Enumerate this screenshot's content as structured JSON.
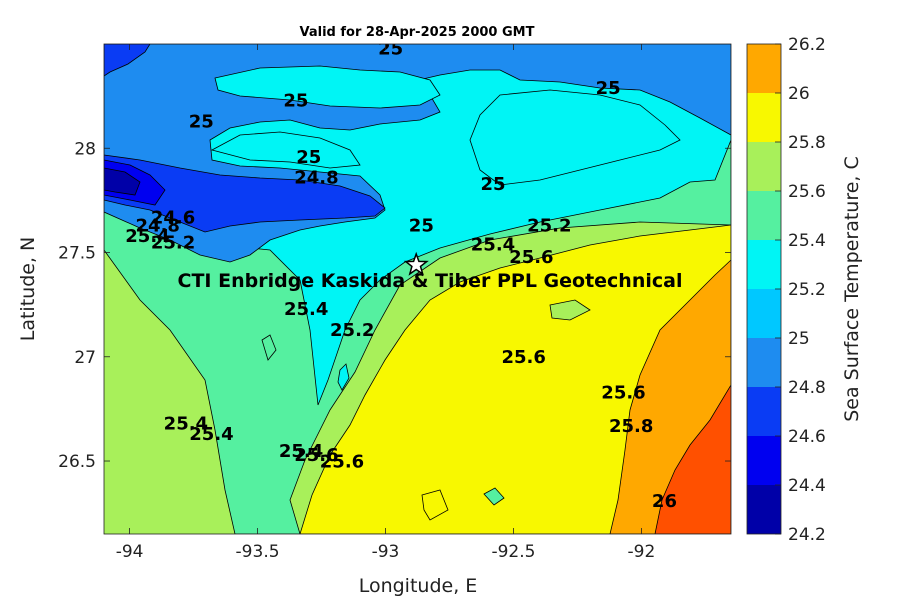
{
  "chart_data": {
    "type": "contour",
    "title": "Valid for 28-Apr-2025 2000 GMT",
    "xlabel": "Longitude, E",
    "ylabel": "Latitude, N",
    "xlim": [
      -94.1,
      -91.65
    ],
    "ylim": [
      26.15,
      28.5
    ],
    "xticks": [
      "-94",
      "-93.5",
      "-93",
      "-92.5",
      "-92"
    ],
    "yticks": [
      "26.5",
      "27",
      "27.5",
      "28"
    ],
    "colorbar": {
      "label": "Sea Surface Temperature, C",
      "ticks": [
        "24.2",
        "24.4",
        "24.6",
        "24.8",
        "25",
        "25.2",
        "25.4",
        "25.6",
        "25.8",
        "26",
        "26.2"
      ],
      "levels": [
        24.2,
        24.4,
        24.6,
        24.8,
        25.0,
        25.2,
        25.4,
        25.6,
        25.8,
        26.0,
        26.2
      ],
      "colors": [
        "#0000a8",
        "#0000f0",
        "#0a3cf4",
        "#1e8cf0",
        "#00c8ff",
        "#00f5f5",
        "#55f0a0",
        "#a8f05a",
        "#f8f800",
        "#ffa800",
        "#ff5000"
      ]
    },
    "station": {
      "label": "CTI Enbridge  Kaskida & Tiber PPL Geotechnical",
      "lon": -92.88,
      "lat": 27.44,
      "marker": "star"
    },
    "contour_labels": [
      {
        "text": "25",
        "lon": -92.98,
        "lat": 28.45
      },
      {
        "text": "25",
        "lon": -92.13,
        "lat": 28.26
      },
      {
        "text": "25",
        "lon": -93.35,
        "lat": 28.2
      },
      {
        "text": "25",
        "lon": -93.72,
        "lat": 28.1
      },
      {
        "text": "25",
        "lon": -93.3,
        "lat": 27.93
      },
      {
        "text": "24.8",
        "lon": -93.27,
        "lat": 27.83
      },
      {
        "text": "25",
        "lon": -92.58,
        "lat": 27.8
      },
      {
        "text": "25",
        "lon": -92.86,
        "lat": 27.6
      },
      {
        "text": "25.2",
        "lon": -92.36,
        "lat": 27.6
      },
      {
        "text": "25.4",
        "lon": -92.58,
        "lat": 27.51
      },
      {
        "text": "25.6",
        "lon": -92.43,
        "lat": 27.45
      },
      {
        "text": "24.6",
        "lon": -93.83,
        "lat": 27.64
      },
      {
        "text": "24.8",
        "lon": -93.89,
        "lat": 27.6
      },
      {
        "text": "25.2",
        "lon": -93.83,
        "lat": 27.52
      },
      {
        "text": "25.4",
        "lon": -93.93,
        "lat": 27.55
      },
      {
        "text": "25.4",
        "lon": -93.31,
        "lat": 27.2
      },
      {
        "text": "25.2",
        "lon": -93.13,
        "lat": 27.1
      },
      {
        "text": "25.6",
        "lon": -92.46,
        "lat": 26.97
      },
      {
        "text": "25.6",
        "lon": -92.07,
        "lat": 26.8
      },
      {
        "text": "25.8",
        "lon": -92.04,
        "lat": 26.64
      },
      {
        "text": "25.4",
        "lon": -93.78,
        "lat": 26.65
      },
      {
        "text": "25.4",
        "lon": -93.68,
        "lat": 26.6
      },
      {
        "text": "25.4",
        "lon": -93.33,
        "lat": 26.52
      },
      {
        "text": "25.6",
        "lon": -93.27,
        "lat": 26.5
      },
      {
        "text": "25.6",
        "lon": -93.17,
        "lat": 26.47
      },
      {
        "text": "26",
        "lon": -91.91,
        "lat": 26.28
      }
    ]
  }
}
